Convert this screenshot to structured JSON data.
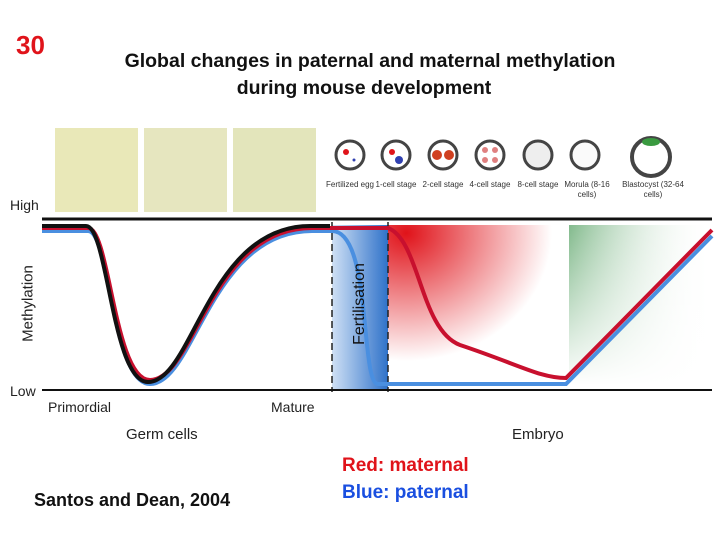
{
  "slide_number": "30",
  "title_line1": "Global changes in paternal and maternal methylation",
  "title_line2": "during mouse development",
  "stages": [
    "Fertilized egg",
    "1-cell stage",
    "2-cell stage",
    "4-cell stage",
    "8-cell stage",
    "Morula (8-16 cells)",
    "Blastocyst (32-64 cells)"
  ],
  "y_axis": {
    "label": "Methylation",
    "high": "High",
    "low": "Low"
  },
  "x_axis": {
    "primordial": "Primordial",
    "mature": "Mature",
    "germ_cells": "Germ cells",
    "embryo": "Embryo"
  },
  "fertilisation_label": "Fertilisation",
  "legend": {
    "red": "Red: maternal",
    "blue": "Blue: paternal"
  },
  "colors": {
    "red": "#e0131a",
    "blue": "#1a4fe0",
    "maternal_line": "#c8102e",
    "paternal_line": "#4a8fe0"
  },
  "citation": "Santos and Dean, 2004"
}
